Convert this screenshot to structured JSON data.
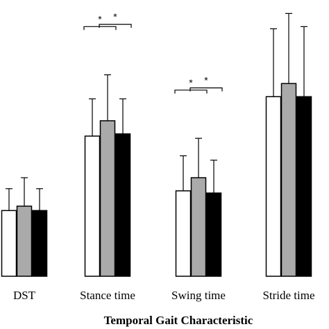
{
  "chart_data": {
    "type": "bar",
    "title": "",
    "xlabel": "Temporal Gait Characteristic",
    "ylabel": "",
    "categories": [
      "DST",
      "Stance time",
      "Swing time",
      "Stride time"
    ],
    "series": [
      {
        "color": "#ffffff",
        "values": [
          0.3,
          0.64,
          0.39,
          0.82
        ],
        "errors": [
          0.1,
          0.17,
          0.16,
          0.31
        ]
      },
      {
        "color": "#aaaaaa",
        "values": [
          0.32,
          0.71,
          0.45,
          0.88
        ],
        "errors": [
          0.13,
          0.21,
          0.18,
          0.32
        ]
      },
      {
        "color": "#000000",
        "values": [
          0.3,
          0.65,
          0.38,
          0.82
        ],
        "errors": [
          0.1,
          0.16,
          0.15,
          0.32
        ]
      }
    ],
    "significance": [
      {
        "category": 1,
        "from": 0,
        "to": 1,
        "label": "*"
      },
      {
        "category": 1,
        "from": 1,
        "to": 2,
        "label": "*"
      },
      {
        "category": 2,
        "from": 0,
        "to": 1,
        "label": "*"
      },
      {
        "category": 2,
        "from": 1,
        "to": 2,
        "label": "*"
      }
    ],
    "ylim": [
      0,
      1.16
    ],
    "grid": false,
    "legend": "none"
  }
}
